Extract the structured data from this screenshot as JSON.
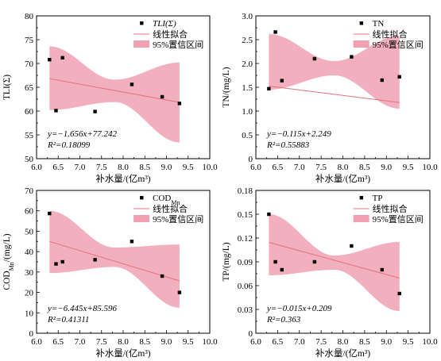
{
  "colors": {
    "band": "#f0a1b1",
    "fit_line": "#e8707e",
    "marker": "#000000",
    "axis": "#000000"
  },
  "chart_data": [
    {
      "type": "scatter",
      "panel": "top-left",
      "xlabel": "补水量/(亿m³)",
      "ylabel": "TLI(Σ)",
      "xlim": [
        6.0,
        10.0
      ],
      "ylim": [
        50,
        80
      ],
      "xticks": [
        "6.0",
        "6.5",
        "7.0",
        "7.5",
        "8.0",
        "8.5",
        "9.0",
        "9.5",
        "10.0"
      ],
      "yticks": [
        "50",
        "55",
        "60",
        "65",
        "70",
        "75",
        "80"
      ],
      "legend": {
        "position": "top-right",
        "items": [
          "TLI(Σ)",
          "线性拟合",
          "95%置信区间"
        ]
      },
      "points": [
        [
          6.3,
          70.8
        ],
        [
          6.45,
          60.1
        ],
        [
          6.6,
          71.2
        ],
        [
          7.35,
          59.9
        ],
        [
          8.2,
          65.6
        ],
        [
          8.9,
          63.0
        ],
        [
          9.3,
          61.6
        ]
      ],
      "fit": {
        "slope": -1.656,
        "intercept": 77.242,
        "x_range": [
          6.3,
          9.3
        ]
      },
      "band": {
        "x": [
          6.3,
          7.8,
          9.3
        ],
        "lower": [
          60.2,
          61.9,
          53.4
        ],
        "upper": [
          73.6,
          66.6,
          70.2
        ]
      },
      "equation": "y=−1.656x+77.242",
      "r2": "R²=0.18099"
    },
    {
      "type": "scatter",
      "panel": "top-right",
      "xlabel": "补水量/(亿m³)",
      "ylabel": "TN/(mg/L)",
      "xlim": [
        6.0,
        10.0
      ],
      "ylim": [
        0.0,
        3.0
      ],
      "xticks": [
        "6.0",
        "6.5",
        "7.0",
        "7.5",
        "8.0",
        "8.5",
        "9.0",
        "9.5",
        "10.0"
      ],
      "yticks": [
        "0",
        "0.5",
        "1.0",
        "1.5",
        "2.0",
        "2.5",
        "3.0"
      ],
      "legend": {
        "position": "top-right",
        "items": [
          "TN",
          "线性拟合",
          "95%置信区间"
        ]
      },
      "points": [
        [
          6.3,
          1.47
        ],
        [
          6.45,
          2.66
        ],
        [
          6.6,
          1.64
        ],
        [
          7.35,
          2.1
        ],
        [
          8.2,
          2.14
        ],
        [
          8.9,
          1.65
        ],
        [
          9.3,
          1.72
        ]
      ],
      "fit": {
        "slope": -0.115,
        "intercept": 2.249,
        "x_range": [
          6.3,
          9.3
        ]
      },
      "band": {
        "x": [
          6.3,
          7.8,
          9.3
        ],
        "lower": [
          1.45,
          1.75,
          1.05
        ],
        "upper": [
          2.62,
          2.05,
          2.58
        ]
      },
      "equation": "y=−0.115x+2.249",
      "r2": "R²=0.55883"
    },
    {
      "type": "scatter",
      "panel": "bottom-left",
      "xlabel": "补水量/(亿m³)",
      "ylabel": "COD",
      "ylabel_sub": "Mn",
      "ylabel_suffix": "/(mg/L)",
      "xlim": [
        6.0,
        10.0
      ],
      "ylim": [
        0,
        70
      ],
      "xticks": [
        "6.0",
        "6.5",
        "7.0",
        "7.5",
        "8.0",
        "8.5",
        "9.0",
        "9.5",
        "10.0"
      ],
      "yticks": [
        "0",
        "10",
        "20",
        "30",
        "40",
        "50",
        "60",
        "70"
      ],
      "legend": {
        "position": "top-right",
        "items": [
          "COD",
          "线性拟合",
          "95%置信区间"
        ],
        "first_sub": "Mn"
      },
      "points": [
        [
          6.3,
          58.7
        ],
        [
          6.45,
          34.0
        ],
        [
          6.6,
          35.0
        ],
        [
          7.35,
          36.0
        ],
        [
          8.2,
          45.0
        ],
        [
          8.9,
          28.0
        ],
        [
          9.3,
          20.0
        ]
      ],
      "fit": {
        "slope": -6.445,
        "intercept": 85.596,
        "x_range": [
          6.3,
          9.3
        ]
      },
      "band": {
        "x": [
          6.3,
          7.8,
          9.3
        ],
        "lower": [
          29.5,
          32.5,
          12.5
        ],
        "upper": [
          60.0,
          42.0,
          43.5
        ]
      },
      "equation": "y=−6.445x+85.596",
      "r2": "R²=0.41311"
    },
    {
      "type": "scatter",
      "panel": "bottom-right",
      "xlabel": "补水量/(亿m³)",
      "ylabel": "TP/(mg/L)",
      "xlim": [
        6.0,
        10.0
      ],
      "ylim": [
        0.0,
        0.18
      ],
      "xticks": [
        "6.0",
        "6.5",
        "7.0",
        "7.5",
        "8.0",
        "8.5",
        "9.0",
        "9.5",
        "10.0"
      ],
      "yticks": [
        "0",
        "0.03",
        "0.06",
        "0.09",
        "0.12",
        "0.15",
        "0.18"
      ],
      "legend": {
        "position": "top-right",
        "items": [
          "TP",
          "线性拟合",
          "95%置信区间"
        ]
      },
      "points": [
        [
          6.3,
          0.15
        ],
        [
          6.45,
          0.09
        ],
        [
          6.6,
          0.08
        ],
        [
          7.35,
          0.09
        ],
        [
          8.2,
          0.11
        ],
        [
          8.9,
          0.08
        ],
        [
          9.3,
          0.05
        ]
      ],
      "fit": {
        "slope": -0.015,
        "intercept": 0.209,
        "x_range": [
          6.3,
          9.3
        ]
      },
      "band": {
        "x": [
          6.3,
          7.8,
          9.3
        ],
        "lower": [
          0.073,
          0.08,
          0.028
        ],
        "upper": [
          0.15,
          0.098,
          0.115
        ]
      },
      "equation": "y=−0.015x+0.209",
      "r2": "R²=0.363"
    }
  ]
}
